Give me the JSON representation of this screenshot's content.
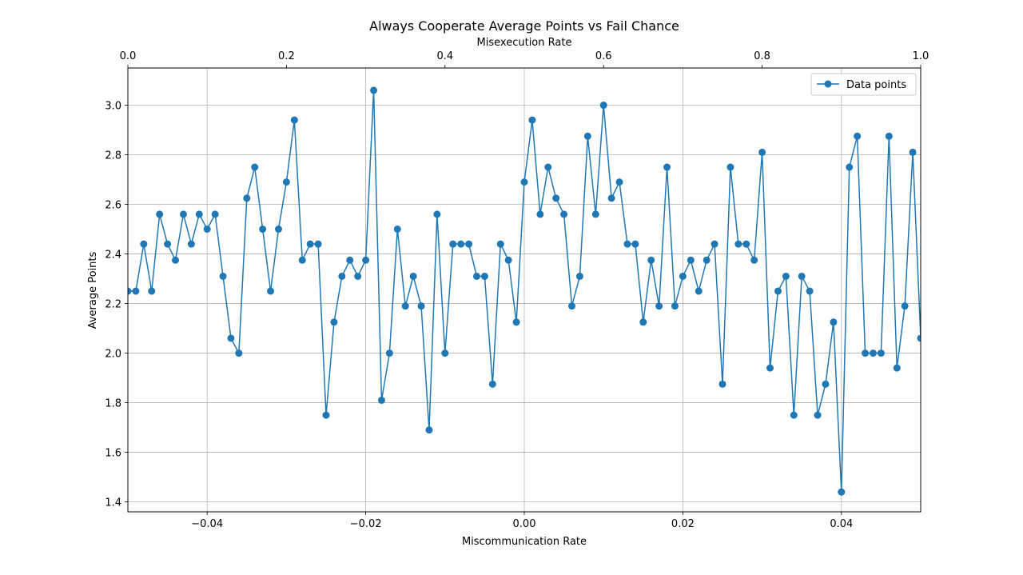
{
  "chart_data": {
    "type": "line",
    "title": "Always Cooperate Average Points vs Fail Chance",
    "xlabel": "Miscommunication Rate",
    "x2label": "Misexecution Rate",
    "ylabel": "Average Points",
    "xlim": [
      -0.05,
      0.05
    ],
    "x2lim": [
      0.0,
      1.0
    ],
    "ylim": [
      1.36,
      3.15
    ],
    "xticks": [
      -0.04,
      -0.02,
      0.0,
      0.02,
      0.04
    ],
    "xtick_labels": [
      "−0.04",
      "−0.02",
      "0.00",
      "0.02",
      "0.04"
    ],
    "x2ticks": [
      0.0,
      0.2,
      0.4,
      0.6,
      0.8,
      1.0
    ],
    "x2tick_labels": [
      "0.0",
      "0.2",
      "0.4",
      "0.6",
      "0.8",
      "1.0"
    ],
    "yticks": [
      1.4,
      1.6,
      1.8,
      2.0,
      2.2,
      2.4,
      2.6,
      2.8,
      3.0
    ],
    "ytick_labels": [
      "1.4",
      "1.6",
      "1.8",
      "2.0",
      "2.2",
      "2.4",
      "2.6",
      "2.8",
      "3.0"
    ],
    "grid": true,
    "legend_position": "top-right",
    "series": [
      {
        "name": "Data points",
        "color": "#1f77b4",
        "marker": "circle",
        "x": [
          -0.05,
          -0.049,
          -0.048,
          -0.047,
          -0.046,
          -0.045,
          -0.044,
          -0.043,
          -0.042,
          -0.041,
          -0.04,
          -0.039,
          -0.038,
          -0.037,
          -0.036,
          -0.035,
          -0.034,
          -0.033,
          -0.032,
          -0.031,
          -0.03,
          -0.029,
          -0.028,
          -0.027,
          -0.026,
          -0.025,
          -0.024,
          -0.023,
          -0.022,
          -0.021,
          -0.02,
          -0.019,
          -0.018,
          -0.017,
          -0.016,
          -0.015,
          -0.014,
          -0.013,
          -0.012,
          -0.011,
          -0.01,
          -0.009,
          -0.008,
          -0.007,
          -0.006,
          -0.005,
          -0.004,
          -0.003,
          -0.002,
          -0.001,
          0.0,
          0.001,
          0.002,
          0.003,
          0.004,
          0.005,
          0.006,
          0.007,
          0.008,
          0.009,
          0.01,
          0.011,
          0.012,
          0.013,
          0.014,
          0.015,
          0.016,
          0.017,
          0.018,
          0.019,
          0.02,
          0.021,
          0.022,
          0.023,
          0.024,
          0.025,
          0.026,
          0.027,
          0.028,
          0.029,
          0.03,
          0.031,
          0.032,
          0.033,
          0.034,
          0.035,
          0.036,
          0.037,
          0.038,
          0.039,
          0.04,
          0.041,
          0.042,
          0.043,
          0.044,
          0.045,
          0.046,
          0.047,
          0.048,
          0.049,
          0.05
        ],
        "y": [
          2.25,
          2.25,
          2.44,
          2.25,
          2.56,
          2.44,
          2.375,
          2.56,
          2.44,
          2.56,
          2.5,
          2.56,
          2.31,
          2.06,
          2.0,
          2.625,
          2.75,
          2.5,
          2.25,
          2.5,
          2.69,
          2.94,
          2.375,
          2.44,
          2.44,
          1.75,
          2.125,
          2.31,
          2.375,
          2.31,
          2.375,
          3.06,
          1.81,
          2.0,
          2.5,
          2.19,
          2.31,
          2.19,
          1.69,
          2.56,
          2.0,
          2.44,
          2.44,
          2.44,
          2.31,
          2.31,
          1.875,
          2.44,
          2.375,
          2.125,
          2.69,
          2.94,
          2.56,
          2.75,
          2.625,
          2.56,
          2.19,
          2.31,
          2.875,
          2.56,
          3.0,
          2.625,
          2.69,
          2.44,
          2.44,
          2.125,
          2.375,
          2.19,
          2.75,
          2.19,
          2.31,
          2.375,
          2.25,
          2.375,
          2.44,
          1.875,
          2.75,
          2.44,
          2.44,
          2.375,
          2.81,
          1.94,
          2.25,
          2.31,
          1.75,
          2.31,
          2.25,
          1.75,
          1.875,
          2.125,
          1.44,
          2.75,
          2.875,
          2.0,
          2.0,
          2.0,
          2.875,
          1.94,
          2.19,
          2.81,
          2.06
        ]
      }
    ]
  }
}
